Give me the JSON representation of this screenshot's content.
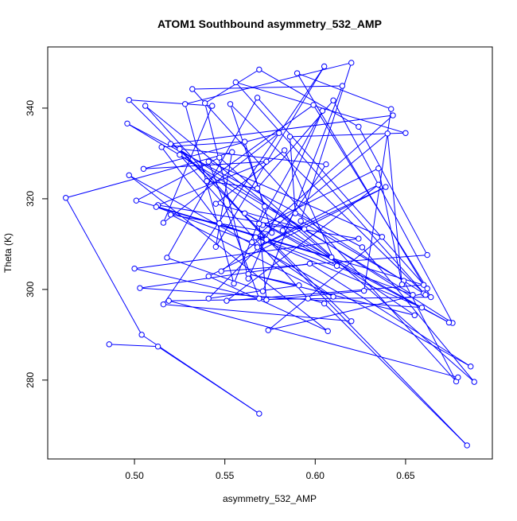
{
  "chart_data": {
    "type": "scatter",
    "title": "ATOM1 Southbound asymmetry_532_AMP",
    "xlabel": "asymmetry_532_AMP",
    "ylabel": "Theta (K)",
    "xlim": [
      0.452,
      0.698
    ],
    "ylim": [
      262.6,
      353.5
    ],
    "x_ticks": [
      0.5,
      0.55,
      0.6,
      0.65
    ],
    "x_tick_labels": [
      "0.50",
      "0.55",
      "0.60",
      "0.65"
    ],
    "y_ticks": [
      280,
      300,
      320,
      340
    ],
    "y_tick_labels": [
      "280",
      "300",
      "320",
      "340"
    ],
    "grid": false,
    "legend": "none",
    "marker": "open-circle",
    "connected": true,
    "color": "#0000ff",
    "series": [
      {
        "points": [
          [
            0.486,
            287.9
          ],
          [
            0.513,
            287.4
          ],
          [
            0.569,
            272.6
          ],
          [
            0.504,
            290.0
          ],
          [
            0.462,
            320.2
          ],
          [
            0.554,
            330.3
          ],
          [
            0.545,
            309.4
          ],
          [
            0.605,
            349.2
          ],
          [
            0.516,
            296.7
          ],
          [
            0.62,
            293.0
          ],
          [
            0.497,
            341.8
          ],
          [
            0.543,
            340.5
          ],
          [
            0.516,
            314.7
          ],
          [
            0.58,
            334.5
          ],
          [
            0.505,
            326.6
          ],
          [
            0.573,
            328.2
          ],
          [
            0.513,
            318.6
          ],
          [
            0.624,
            311.2
          ],
          [
            0.5,
            304.6
          ],
          [
            0.569,
            298.0
          ],
          [
            0.541,
            328.2
          ],
          [
            0.637,
            311.6
          ],
          [
            0.574,
            291.0
          ],
          [
            0.66,
            299.1
          ],
          [
            0.589,
            316.8
          ],
          [
            0.586,
            333.7
          ],
          [
            0.65,
            334.5
          ],
          [
            0.556,
            345.7
          ],
          [
            0.661,
            298.8
          ],
          [
            0.553,
            340.9
          ],
          [
            0.572,
            318.3
          ],
          [
            0.555,
            301.3
          ],
          [
            0.528,
            340.9
          ],
          [
            0.62,
            350.0
          ],
          [
            0.592,
            315.1
          ],
          [
            0.649,
            301.9
          ],
          [
            0.678,
            279.7
          ],
          [
            0.532,
            344.2
          ],
          [
            0.615,
            344.9
          ],
          [
            0.571,
            299.6
          ],
          [
            0.518,
            307.0
          ],
          [
            0.568,
            342.3
          ],
          [
            0.662,
            300.2
          ],
          [
            0.599,
            340.7
          ],
          [
            0.54,
            323.9
          ],
          [
            0.568,
            322.3
          ],
          [
            0.61,
            341.7
          ],
          [
            0.676,
            292.6
          ],
          [
            0.52,
            332.1
          ],
          [
            0.643,
            338.4
          ],
          [
            0.567,
            311.5
          ],
          [
            0.659,
            296.0
          ],
          [
            0.503,
            300.3
          ],
          [
            0.597,
            305.7
          ],
          [
            0.686,
            283.0
          ],
          [
            0.497,
            325.2
          ],
          [
            0.607,
            290.8
          ],
          [
            0.541,
            302.9
          ],
          [
            0.639,
            322.6
          ],
          [
            0.568,
            309.3
          ],
          [
            0.635,
            323.1
          ],
          [
            0.551,
            297.5
          ],
          [
            0.66,
            301.0
          ],
          [
            0.512,
            318.2
          ],
          [
            0.565,
            310.4
          ],
          [
            0.61,
            298.4
          ],
          [
            0.52,
            316.5
          ],
          [
            0.576,
            312.5
          ],
          [
            0.561,
            332.6
          ],
          [
            0.515,
            331.4
          ],
          [
            0.547,
            314.6
          ],
          [
            0.654,
            298.8
          ],
          [
            0.496,
            336.6
          ],
          [
            0.626,
            309.3
          ],
          [
            0.688,
            279.6
          ],
          [
            0.547,
            329.1
          ],
          [
            0.501,
            319.6
          ],
          [
            0.609,
            307.1
          ],
          [
            0.506,
            340.5
          ],
          [
            0.573,
            311.0
          ],
          [
            0.541,
            298.0
          ],
          [
            0.591,
            300.9
          ],
          [
            0.563,
            303.4
          ],
          [
            0.655,
            294.3
          ],
          [
            0.525,
            329.7
          ],
          [
            0.596,
            298.0
          ],
          [
            0.605,
            296.9
          ],
          [
            0.684,
            265.6
          ],
          [
            0.525,
            331.0
          ],
          [
            0.606,
            327.6
          ],
          [
            0.582,
            313.0
          ],
          [
            0.674,
            292.7
          ],
          [
            0.561,
            316.8
          ],
          [
            0.612,
            305.2
          ],
          [
            0.583,
            330.7
          ],
          [
            0.545,
            318.9
          ],
          [
            0.594,
            313.3
          ],
          [
            0.571,
            314.2
          ],
          [
            0.635,
            326.7
          ],
          [
            0.648,
            301.1
          ],
          [
            0.64,
            334.4
          ],
          [
            0.548,
            304.0
          ],
          [
            0.662,
            307.6
          ],
          [
            0.624,
            335.9
          ],
          [
            0.569,
            348.5
          ],
          [
            0.539,
            341.1
          ],
          [
            0.563,
            302.4
          ],
          [
            0.604,
            339.4
          ],
          [
            0.569,
            314.5
          ],
          [
            0.573,
            297.7
          ],
          [
            0.627,
            299.7
          ],
          [
            0.642,
            339.8
          ],
          [
            0.59,
            347.7
          ],
          [
            0.664,
            298.3
          ],
          [
            0.519,
            297.5
          ],
          [
            0.679,
            280.6
          ]
        ]
      }
    ]
  }
}
